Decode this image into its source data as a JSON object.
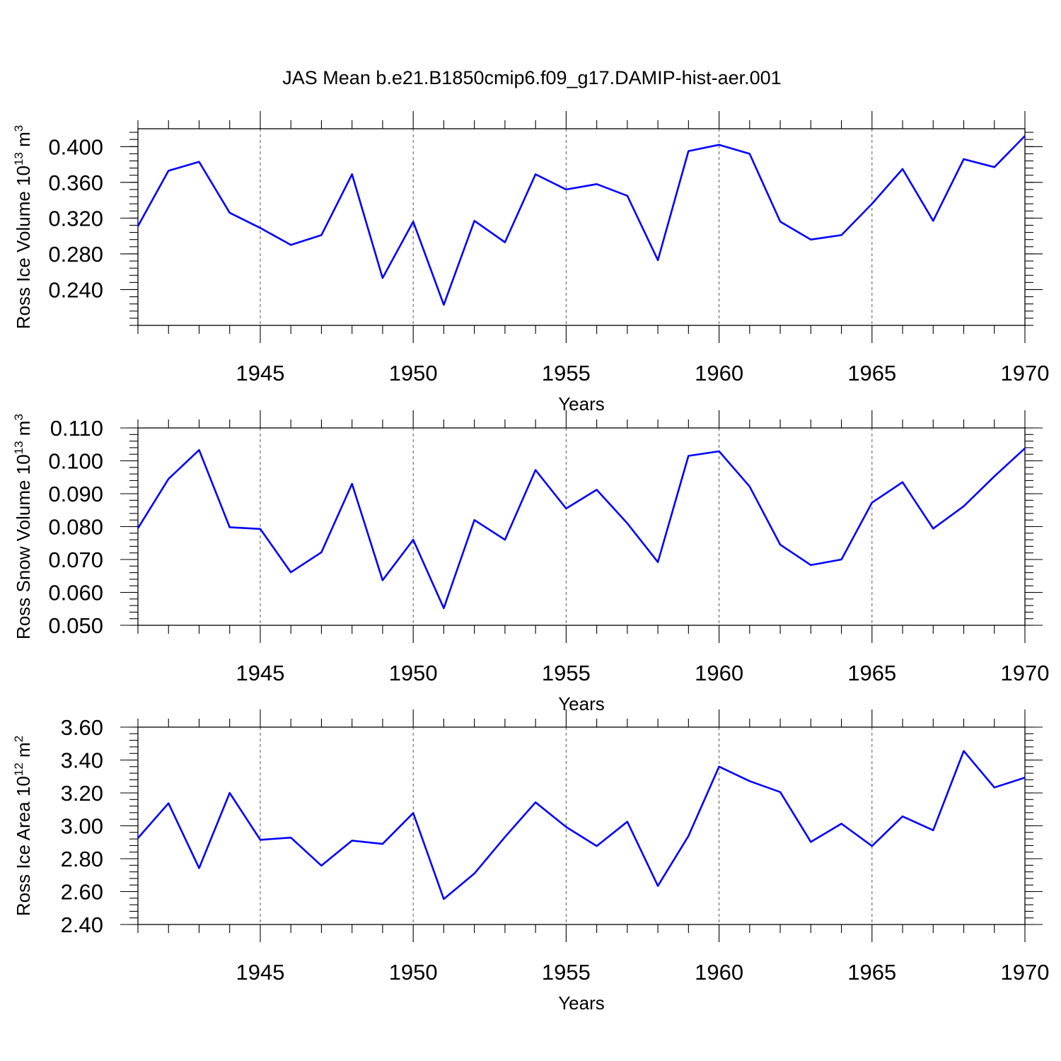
{
  "chart_data": {
    "title": "JAS Mean b.e21.B1850cmip6.f09_g17.DAMIP-hist-aer.001",
    "line_color": "#0000ff",
    "panels": [
      {
        "type": "line",
        "ylabel_main": "Ross Ice Volume 10",
        "ylabel_exp": "13",
        "ylabel_unit": " m",
        "ylabel_unit_exp": "3",
        "xlabel": "Years",
        "xlim": [
          1941,
          1970
        ],
        "ylim": [
          0.2,
          0.42
        ],
        "yticks": [
          0.24,
          0.28,
          0.32,
          0.36,
          0.4
        ],
        "ytick_labels": [
          "0.240",
          "0.280",
          "0.320",
          "0.360",
          "0.400"
        ],
        "xticks": [
          1945,
          1950,
          1955,
          1960,
          1965,
          1970
        ],
        "xtick_labels": [
          "1945",
          "1950",
          "1955",
          "1960",
          "1965",
          "1970"
        ],
        "x": [
          1941,
          1942,
          1943,
          1944,
          1945,
          1946,
          1947,
          1948,
          1949,
          1950,
          1951,
          1952,
          1953,
          1954,
          1955,
          1956,
          1957,
          1958,
          1959,
          1960,
          1961,
          1962,
          1963,
          1964,
          1965,
          1966,
          1967,
          1968,
          1969,
          1970
        ],
        "values": [
          0.311,
          0.373,
          0.383,
          0.326,
          0.309,
          0.29,
          0.301,
          0.369,
          0.253,
          0.316,
          0.223,
          0.317,
          0.293,
          0.369,
          0.352,
          0.358,
          0.345,
          0.273,
          0.395,
          0.402,
          0.392,
          0.316,
          0.296,
          0.301,
          0.336,
          0.375,
          0.317,
          0.386,
          0.377,
          0.412
        ]
      },
      {
        "type": "line",
        "ylabel_main": "Ross Snow Volume 10",
        "ylabel_exp": "13",
        "ylabel_unit": " m",
        "ylabel_unit_exp": "3",
        "xlabel": "Years",
        "xlim": [
          1941,
          1970
        ],
        "ylim": [
          0.05,
          0.11
        ],
        "yticks": [
          0.05,
          0.06,
          0.07,
          0.08,
          0.09,
          0.1,
          0.11
        ],
        "ytick_labels": [
          "0.050",
          "0.060",
          "0.070",
          "0.080",
          "0.090",
          "0.100",
          "0.110"
        ],
        "xticks": [
          1945,
          1950,
          1955,
          1960,
          1965,
          1970
        ],
        "xtick_labels": [
          "1945",
          "1950",
          "1955",
          "1960",
          "1965",
          "1970"
        ],
        "x": [
          1941,
          1942,
          1943,
          1944,
          1945,
          1946,
          1947,
          1948,
          1949,
          1950,
          1951,
          1952,
          1953,
          1954,
          1955,
          1956,
          1957,
          1958,
          1959,
          1960,
          1961,
          1962,
          1963,
          1964,
          1965,
          1966,
          1967,
          1968,
          1969,
          1970
        ],
        "values": [
          0.0795,
          0.0945,
          0.1033,
          0.0798,
          0.0793,
          0.0661,
          0.0722,
          0.093,
          0.0637,
          0.076,
          0.0552,
          0.082,
          0.076,
          0.0972,
          0.0855,
          0.0912,
          0.081,
          0.0692,
          0.1015,
          0.1029,
          0.0922,
          0.0745,
          0.0683,
          0.07,
          0.0873,
          0.0935,
          0.0794,
          0.0862,
          0.0953,
          0.1038
        ]
      },
      {
        "type": "line",
        "ylabel_main": "Ross Ice Area 10",
        "ylabel_exp": "12",
        "ylabel_unit": " m",
        "ylabel_unit_exp": "2",
        "xlabel": "Years",
        "xlim": [
          1941,
          1970
        ],
        "ylim": [
          2.4,
          3.6
        ],
        "yticks": [
          2.4,
          2.6,
          2.8,
          3.0,
          3.2,
          3.4,
          3.6
        ],
        "ytick_labels": [
          "2.40",
          "2.60",
          "2.80",
          "3.00",
          "3.20",
          "3.40",
          "3.60"
        ],
        "xticks": [
          1945,
          1950,
          1955,
          1960,
          1965,
          1970
        ],
        "xtick_labels": [
          "1945",
          "1950",
          "1955",
          "1960",
          "1965",
          "1970"
        ],
        "x": [
          1941,
          1942,
          1943,
          1944,
          1945,
          1946,
          1947,
          1948,
          1949,
          1950,
          1951,
          1952,
          1953,
          1954,
          1955,
          1956,
          1957,
          1958,
          1959,
          1960,
          1961,
          1962,
          1963,
          1964,
          1965,
          1966,
          1967,
          1968,
          1969,
          1970
        ],
        "values": [
          2.925,
          3.137,
          2.743,
          3.2,
          2.915,
          2.928,
          2.758,
          2.91,
          2.89,
          3.078,
          2.555,
          2.71,
          2.932,
          3.143,
          2.993,
          2.877,
          3.025,
          2.635,
          2.938,
          3.36,
          3.272,
          3.205,
          2.902,
          3.013,
          2.877,
          3.057,
          2.973,
          3.455,
          3.233,
          3.293
        ]
      }
    ]
  }
}
